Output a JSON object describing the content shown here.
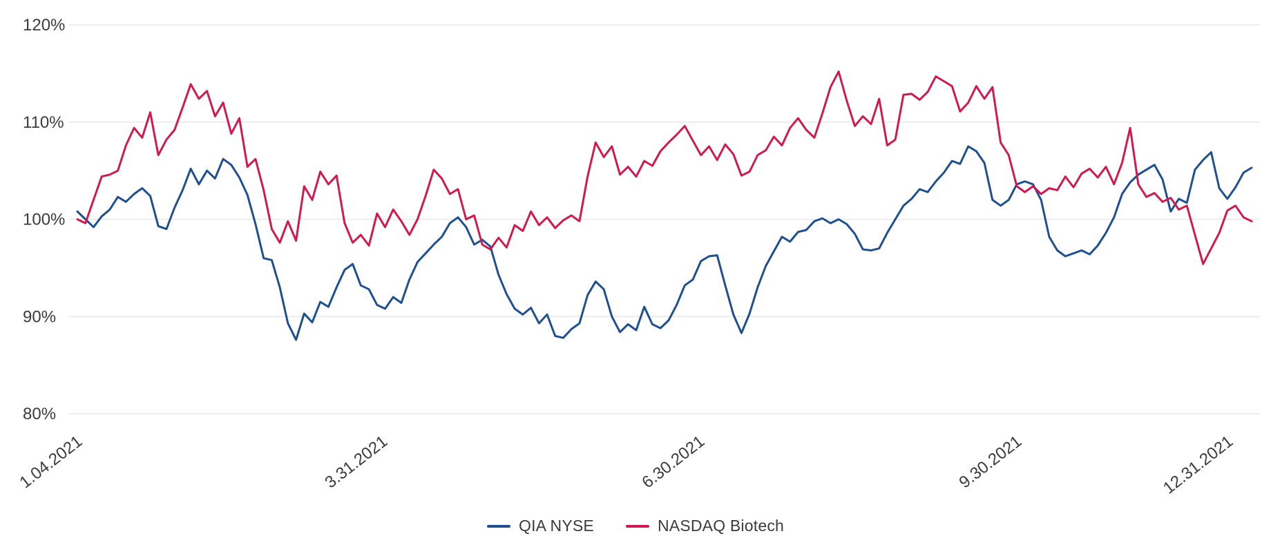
{
  "colors": {
    "background": "#ffffff",
    "grid": "#e9e9e9",
    "text": "#3b3b3b",
    "series_blue": "#1d4f91",
    "series_red": "#d2194f"
  },
  "chart_data": {
    "type": "line",
    "title": "",
    "xlabel": "",
    "ylabel": "",
    "unit": "%",
    "grid": true,
    "legend_position": "bottom-center",
    "ylim": [
      80,
      120
    ],
    "y_ticks": [
      {
        "label": "120%",
        "value": 120
      },
      {
        "label": "110%",
        "value": 110
      },
      {
        "label": "100%",
        "value": 100
      },
      {
        "label": "90%",
        "value": 90
      },
      {
        "label": "80%",
        "value": 80
      }
    ],
    "x_ticks": [
      {
        "label": "1.04.2021",
        "f": 0.005
      },
      {
        "label": "3.31.2021",
        "f": 0.265
      },
      {
        "label": "6.30.2021",
        "f": 0.535
      },
      {
        "label": "9.30.2021",
        "f": 0.805
      },
      {
        "label": "12.31.2021",
        "f": 0.985
      }
    ],
    "series": [
      {
        "name": "QIA NYSE",
        "color": "#1d4f91",
        "values": [
          100.8,
          100.0,
          99.2,
          100.3,
          101.0,
          102.3,
          101.8,
          102.6,
          103.2,
          102.4,
          99.3,
          99.0,
          101.2,
          103.0,
          105.2,
          103.6,
          105.0,
          104.2,
          106.2,
          105.6,
          104.3,
          102.5,
          99.5,
          96.0,
          95.8,
          93.0,
          89.3,
          87.6,
          90.3,
          89.4,
          91.5,
          91.0,
          93.0,
          94.8,
          95.4,
          93.2,
          92.8,
          91.2,
          90.8,
          92.0,
          91.4,
          93.8,
          95.6,
          96.5,
          97.4,
          98.2,
          99.6,
          100.2,
          99.2,
          97.4,
          97.9,
          97.2,
          94.3,
          92.3,
          90.8,
          90.2,
          90.9,
          89.3,
          90.2,
          88.0,
          87.8,
          88.7,
          89.3,
          92.2,
          93.6,
          92.8,
          90.0,
          88.4,
          89.2,
          88.6,
          91.0,
          89.2,
          88.8,
          89.6,
          91.2,
          93.2,
          93.8,
          95.7,
          96.2,
          96.3,
          93.2,
          90.2,
          88.3,
          90.3,
          93.0,
          95.2,
          96.7,
          98.2,
          97.7,
          98.7,
          98.9,
          99.8,
          100.1,
          99.6,
          100.0,
          99.5,
          98.5,
          96.9,
          96.8,
          97.0,
          98.6,
          100.0,
          101.4,
          102.1,
          103.1,
          102.8,
          103.9,
          104.8,
          106.0,
          105.7,
          107.5,
          107.0,
          105.8,
          102.0,
          101.4,
          102.0,
          103.6,
          103.9,
          103.6,
          102.0,
          98.2,
          96.8,
          96.2,
          96.5,
          96.8,
          96.4,
          97.3,
          98.6,
          100.2,
          102.6,
          103.8,
          104.6,
          105.1,
          105.6,
          104.1,
          100.8,
          102.1,
          101.7,
          105.1,
          106.1,
          106.9,
          103.2,
          102.1,
          103.3,
          104.8,
          105.3
        ]
      },
      {
        "name": "NASDAQ Biotech",
        "color": "#d2194f",
        "values": [
          100.0,
          99.6,
          102.0,
          104.4,
          104.6,
          105.0,
          107.6,
          109.4,
          108.4,
          111.0,
          106.6,
          108.2,
          109.2,
          111.5,
          113.9,
          112.4,
          113.2,
          110.6,
          112.0,
          108.8,
          110.4,
          105.4,
          106.2,
          103.0,
          99.0,
          97.6,
          99.8,
          97.8,
          103.4,
          102.0,
          104.9,
          103.6,
          104.5,
          99.6,
          97.6,
          98.4,
          97.3,
          100.6,
          99.2,
          101.0,
          99.8,
          98.4,
          100.0,
          102.4,
          105.1,
          104.2,
          102.6,
          103.1,
          100.0,
          100.4,
          97.4,
          96.9,
          98.1,
          97.1,
          99.4,
          98.8,
          100.8,
          99.4,
          100.2,
          99.1,
          99.9,
          100.4,
          99.8,
          104.4,
          107.9,
          106.4,
          107.5,
          104.6,
          105.4,
          104.4,
          106.0,
          105.5,
          107.0,
          107.9,
          108.7,
          109.6,
          108.1,
          106.6,
          107.5,
          106.1,
          107.7,
          106.7,
          104.5,
          104.9,
          106.6,
          107.1,
          108.5,
          107.6,
          109.4,
          110.4,
          109.2,
          108.4,
          110.9,
          113.6,
          115.2,
          112.2,
          109.6,
          110.6,
          109.8,
          112.4,
          107.6,
          108.2,
          112.8,
          112.9,
          112.3,
          113.1,
          114.7,
          114.2,
          113.7,
          111.1,
          112.0,
          113.7,
          112.4,
          113.6,
          107.9,
          106.6,
          103.4,
          102.8,
          103.4,
          102.6,
          103.2,
          103.0,
          104.4,
          103.3,
          104.7,
          105.2,
          104.3,
          105.4,
          103.6,
          105.8,
          109.4,
          103.6,
          102.3,
          102.7,
          101.8,
          102.2,
          101.0,
          101.4,
          98.4,
          95.4,
          97.0,
          98.6,
          100.9,
          101.4,
          100.2,
          99.8
        ]
      }
    ]
  }
}
